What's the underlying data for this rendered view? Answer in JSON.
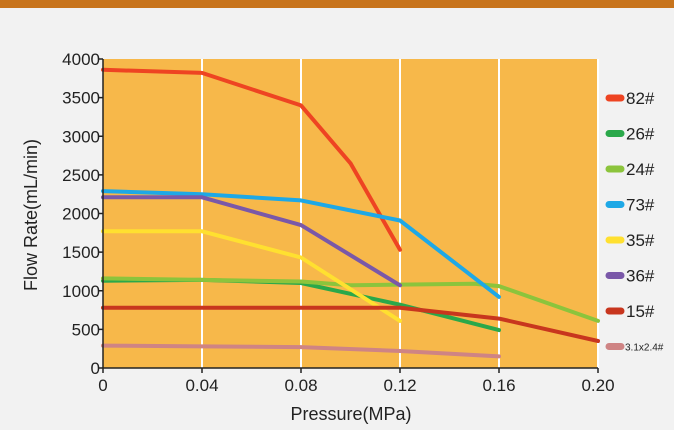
{
  "colors": {
    "top_bar": "#c8741c",
    "plot_bg": "#f7b84a",
    "grid": "#ffffff",
    "axis": "#222222"
  },
  "chart_data": {
    "type": "line",
    "xlabel": "Pressure(MPa)",
    "ylabel": "Flow Rate(mL/min)",
    "xlim": [
      0,
      0.2
    ],
    "ylim": [
      0,
      4000
    ],
    "x_ticks": [
      0,
      0.04,
      0.08,
      0.12,
      0.16,
      0.2
    ],
    "x_tick_labels": [
      "0",
      "0.04",
      "0.08",
      "0.12",
      "0.16",
      "0.20"
    ],
    "y_ticks": [
      0,
      500,
      1000,
      1500,
      2000,
      2500,
      3000,
      3500,
      4000
    ],
    "y_tick_labels": [
      "0",
      "500",
      "1000",
      "1500",
      "2000",
      "2500",
      "3000",
      "3500",
      "4000"
    ],
    "grid": "vertical",
    "legend_position": "right",
    "series": [
      {
        "name": "82#",
        "color": "#ee4422",
        "points": [
          [
            0,
            3860
          ],
          [
            0.04,
            3820
          ],
          [
            0.08,
            3400
          ],
          [
            0.1,
            2650
          ],
          [
            0.12,
            1530
          ]
        ]
      },
      {
        "name": "26#",
        "color": "#2aa84a",
        "points": [
          [
            0,
            1130
          ],
          [
            0.04,
            1140
          ],
          [
            0.08,
            1100
          ],
          [
            0.12,
            820
          ],
          [
            0.16,
            490
          ]
        ]
      },
      {
        "name": "24#",
        "color": "#8cc43c",
        "points": [
          [
            0,
            1160
          ],
          [
            0.04,
            1140
          ],
          [
            0.08,
            1120
          ],
          [
            0.1,
            1070
          ],
          [
            0.12,
            1080
          ],
          [
            0.15,
            1090
          ],
          [
            0.16,
            1060
          ],
          [
            0.2,
            610
          ]
        ]
      },
      {
        "name": "73#",
        "color": "#1ea8e6",
        "points": [
          [
            0,
            2290
          ],
          [
            0.04,
            2250
          ],
          [
            0.08,
            2170
          ],
          [
            0.12,
            1910
          ],
          [
            0.16,
            920
          ]
        ]
      },
      {
        "name": "35#",
        "color": "#ffe030",
        "points": [
          [
            0,
            1770
          ],
          [
            0.04,
            1770
          ],
          [
            0.08,
            1430
          ],
          [
            0.12,
            610
          ]
        ]
      },
      {
        "name": "36#",
        "color": "#7a58a8",
        "points": [
          [
            0,
            2210
          ],
          [
            0.04,
            2210
          ],
          [
            0.08,
            1850
          ],
          [
            0.12,
            1070
          ]
        ]
      },
      {
        "name": "15#",
        "color": "#c8361e",
        "points": [
          [
            0,
            780
          ],
          [
            0.04,
            780
          ],
          [
            0.08,
            780
          ],
          [
            0.12,
            780
          ],
          [
            0.16,
            640
          ],
          [
            0.2,
            350
          ]
        ]
      },
      {
        "name": "3.1x2.4#",
        "color": "#cf8484",
        "points": [
          [
            0,
            290
          ],
          [
            0.04,
            280
          ],
          [
            0.08,
            270
          ],
          [
            0.12,
            220
          ],
          [
            0.16,
            150
          ]
        ]
      }
    ]
  }
}
